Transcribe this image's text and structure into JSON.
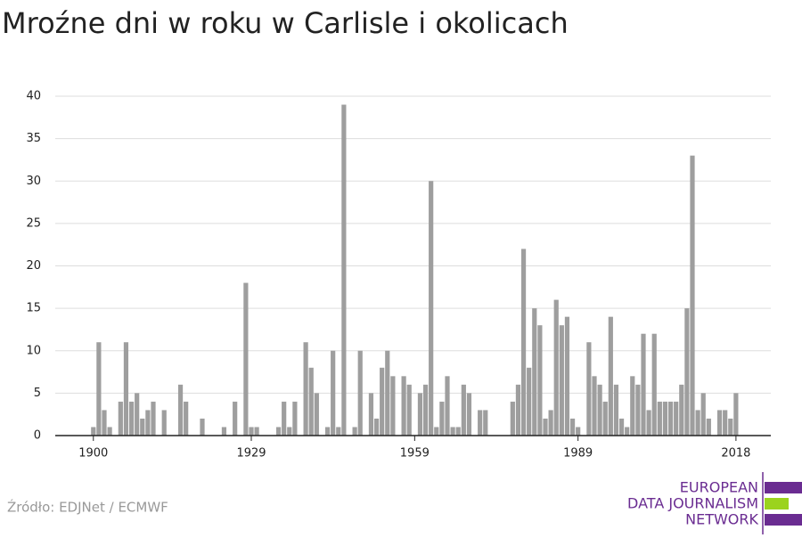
{
  "chart_data": {
    "type": "bar",
    "title": "Mroźne dni w roku w Carlisle i okolicach",
    "source": "Źródło: EDJNet / ECMWF",
    "logo": [
      "EUROPEAN",
      "DATA JOURNALISM",
      "NETWORK"
    ],
    "color": "#9e9e9e",
    "x": [
      1900,
      1901,
      1902,
      1903,
      1904,
      1905,
      1906,
      1907,
      1908,
      1909,
      1910,
      1911,
      1912,
      1913,
      1914,
      1915,
      1916,
      1917,
      1918,
      1919,
      1920,
      1921,
      1922,
      1923,
      1924,
      1925,
      1926,
      1927,
      1928,
      1929,
      1930,
      1931,
      1932,
      1933,
      1934,
      1935,
      1936,
      1937,
      1938,
      1939,
      1940,
      1941,
      1942,
      1943,
      1944,
      1945,
      1946,
      1947,
      1948,
      1949,
      1950,
      1951,
      1952,
      1953,
      1954,
      1955,
      1956,
      1957,
      1958,
      1959,
      1960,
      1961,
      1962,
      1963,
      1964,
      1965,
      1966,
      1967,
      1968,
      1969,
      1970,
      1971,
      1972,
      1973,
      1974,
      1975,
      1976,
      1977,
      1978,
      1979,
      1980,
      1981,
      1982,
      1983,
      1984,
      1985,
      1986,
      1987,
      1988,
      1989,
      1990,
      1991,
      1992,
      1993,
      1994,
      1995,
      1996,
      1997,
      1998,
      1999,
      2000,
      2001,
      2002,
      2003,
      2004,
      2005,
      2006,
      2007,
      2008,
      2009,
      2010,
      2011,
      2012,
      2013,
      2014,
      2015,
      2016,
      2017,
      2018
    ],
    "values": [
      1,
      11,
      3,
      1,
      0,
      4,
      11,
      4,
      5,
      2,
      3,
      4,
      0,
      3,
      0,
      0,
      6,
      4,
      0,
      0,
      2,
      0,
      0,
      0,
      1,
      0,
      4,
      0,
      18,
      1,
      1,
      0,
      0,
      0,
      1,
      4,
      1,
      4,
      0,
      11,
      8,
      5,
      0,
      1,
      10,
      1,
      39,
      0,
      1,
      10,
      0,
      5,
      2,
      8,
      10,
      7,
      0,
      7,
      6,
      0,
      5,
      6,
      30,
      1,
      4,
      7,
      1,
      1,
      6,
      5,
      0,
      3,
      3,
      0,
      0,
      0,
      0,
      4,
      6,
      22,
      8,
      15,
      13,
      2,
      3,
      16,
      13,
      14,
      2,
      1,
      0,
      11,
      7,
      6,
      4,
      14,
      6,
      2,
      1,
      7,
      6,
      12,
      3,
      12,
      4,
      4,
      4,
      4,
      6,
      15,
      33,
      3,
      5,
      2,
      0,
      3,
      3,
      2,
      5
    ],
    "xlim": [
      1893,
      2024.4
    ],
    "xticks": [
      1900,
      1929,
      1959,
      1989,
      2018
    ],
    "ylim": [
      0,
      40
    ],
    "yticks": [
      0,
      5,
      10,
      15,
      20,
      25,
      30,
      35,
      40
    ],
    "grid": true
  }
}
